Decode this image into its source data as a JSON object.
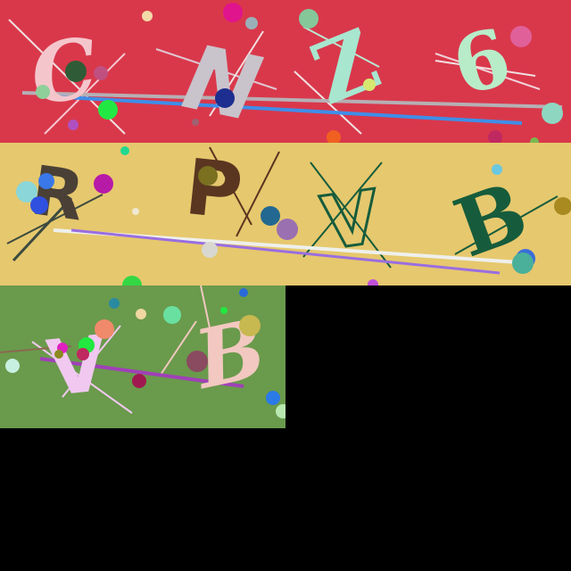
{
  "captcha_tiles": [
    {
      "characters": [
        "C",
        "N",
        "Z",
        "6"
      ],
      "background_color": "#d9384b",
      "glyph_colors": [
        "#f4c6cc",
        "#c9c3cb",
        "#a8e6cf",
        "#b8ecc9"
      ]
    },
    {
      "characters": [
        "R",
        "P",
        "V",
        "B"
      ],
      "background_color": "#e6c86e",
      "glyph_colors": [
        "#4a4036",
        "#5a3620",
        "#165c3c",
        "#165c3c"
      ]
    },
    {
      "characters": [
        "V",
        "B"
      ],
      "background_color": "#6a9a4c",
      "glyph_colors": [
        "#f0c8f0",
        "#f2c8c0"
      ]
    }
  ]
}
